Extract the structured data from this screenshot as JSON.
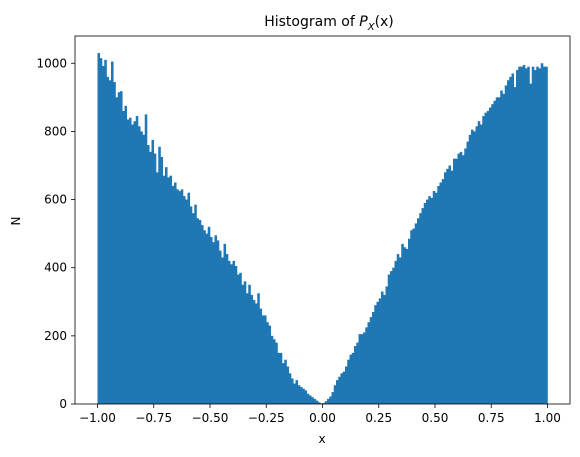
{
  "chart_data": {
    "type": "bar",
    "title_main": "Histogram of ",
    "title_var": "P",
    "title_sub": "X",
    "title_arg": "(x)",
    "xlabel": "x",
    "ylabel": "N",
    "xlim": [
      -1.1,
      1.1
    ],
    "ylim": [
      0,
      1080
    ],
    "xticks": [
      -1.0,
      -0.75,
      -0.5,
      -0.25,
      0.0,
      0.25,
      0.5,
      0.75,
      1.0
    ],
    "xtick_labels": [
      "−1.00",
      "−0.75",
      "−0.50",
      "−0.25",
      "0.00",
      "0.25",
      "0.50",
      "0.75",
      "1.00"
    ],
    "yticks": [
      0,
      200,
      400,
      600,
      800,
      1000
    ],
    "ytick_labels": [
      "0",
      "200",
      "400",
      "600",
      "800",
      "1000"
    ],
    "bar_color": "#1f77b4",
    "bin_edges_range": [
      -1.0,
      1.0
    ],
    "bins": 200,
    "counts": [
      1030,
      1015,
      992,
      1010,
      960,
      950,
      1005,
      945,
      900,
      915,
      918,
      860,
      875,
      835,
      840,
      820,
      830,
      845,
      815,
      800,
      790,
      850,
      760,
      740,
      775,
      735,
      680,
      755,
      725,
      670,
      695,
      665,
      670,
      640,
      650,
      630,
      625,
      630,
      610,
      600,
      620,
      580,
      560,
      585,
      545,
      540,
      525,
      510,
      500,
      520,
      490,
      475,
      495,
      480,
      450,
      430,
      470,
      440,
      420,
      410,
      420,
      405,
      380,
      385,
      350,
      360,
      325,
      350,
      320,
      305,
      295,
      325,
      280,
      260,
      260,
      240,
      230,
      200,
      190,
      180,
      150,
      150,
      120,
      130,
      110,
      90,
      75,
      60,
      70,
      55,
      50,
      45,
      40,
      30,
      25,
      20,
      15,
      10,
      5,
      2,
      3,
      8,
      15,
      22,
      35,
      55,
      70,
      80,
      90,
      95,
      110,
      130,
      145,
      150,
      170,
      180,
      205,
      205,
      210,
      225,
      240,
      255,
      270,
      290,
      300,
      310,
      330,
      320,
      345,
      380,
      390,
      400,
      420,
      440,
      430,
      470,
      460,
      455,
      485,
      510,
      515,
      530,
      545,
      560,
      575,
      590,
      600,
      610,
      605,
      625,
      620,
      640,
      650,
      660,
      680,
      690,
      700,
      685,
      720,
      720,
      735,
      740,
      730,
      750,
      770,
      790,
      805,
      800,
      815,
      830,
      820,
      845,
      855,
      860,
      870,
      880,
      890,
      900,
      900,
      920,
      910,
      935,
      950,
      960,
      970,
      930,
      980,
      990,
      990,
      995,
      985,
      990,
      940,
      990,
      980,
      990,
      985,
      1000,
      990,
      990
    ]
  }
}
